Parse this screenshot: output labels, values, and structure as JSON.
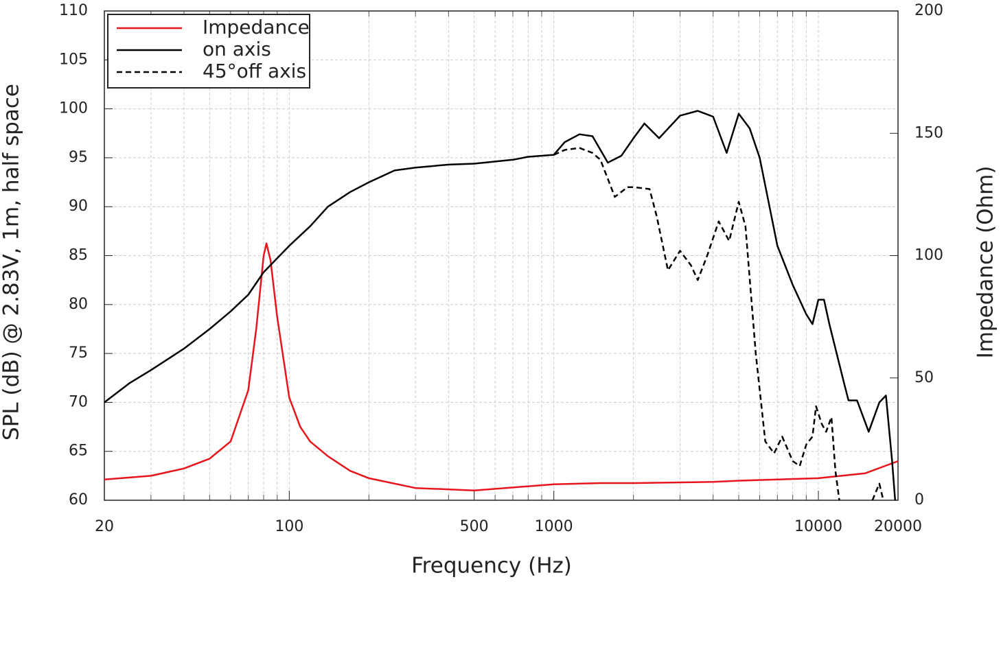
{
  "chart_data": {
    "type": "line",
    "xlabel": "Frequency (Hz)",
    "ylabel": "SPL (dB) @ 2.83V, 1m, half space",
    "y2label": "Impedance (Ohm)",
    "xscale": "log",
    "xlim": [
      20,
      20000
    ],
    "xticks": [
      20,
      100,
      500,
      1000,
      10000,
      20000
    ],
    "xgrid": [
      30,
      40,
      50,
      60,
      70,
      80,
      90,
      200,
      300,
      400,
      600,
      700,
      800,
      900,
      2000,
      3000,
      4000,
      5000,
      6000,
      7000,
      8000,
      9000
    ],
    "ylim": [
      60,
      110
    ],
    "yticks": [
      60,
      65,
      70,
      75,
      80,
      85,
      90,
      95,
      100,
      105,
      110
    ],
    "y2lim": [
      0,
      200
    ],
    "y2ticks": [
      0,
      50,
      100,
      150,
      200
    ],
    "grid": true,
    "legend": "upper-left",
    "series": [
      {
        "name": "Impedance",
        "color": "#e8141c",
        "style": "solid",
        "axis": "y2",
        "x": [
          20,
          30,
          40,
          50,
          60,
          70,
          75,
          80,
          82,
          85,
          90,
          100,
          110,
          120,
          140,
          170,
          200,
          300,
          500,
          1000,
          1500,
          2000,
          4000,
          5000,
          10000,
          15000,
          20000
        ],
        "values": [
          8.5,
          10,
          13,
          17,
          24,
          45,
          70,
          100,
          105,
          98,
          75,
          42,
          30,
          24,
          18,
          12,
          9,
          5,
          4,
          6.5,
          7,
          7,
          7.5,
          8,
          9,
          11,
          16
        ]
      },
      {
        "name": "on axis",
        "color": "#000000",
        "style": "solid",
        "x": [
          20,
          25,
          30,
          40,
          50,
          60,
          70,
          80,
          100,
          120,
          140,
          170,
          200,
          250,
          300,
          400,
          500,
          700,
          800,
          1000,
          1100,
          1250,
          1400,
          1600,
          1800,
          2000,
          2200,
          2500,
          3000,
          3500,
          4000,
          4500,
          5000,
          5500,
          6000,
          7000,
          8000,
          9000,
          9500,
          10000,
          10500,
          11000,
          12500,
          13000,
          14000,
          15500,
          17000,
          18000,
          19000,
          19500
        ],
        "values": [
          70,
          72,
          73.3,
          75.5,
          77.5,
          79.3,
          81,
          83.3,
          86,
          88,
          90,
          91.5,
          92.5,
          93.7,
          94,
          94.3,
          94.4,
          94.8,
          95.1,
          95.3,
          96.6,
          97.4,
          97.2,
          94.5,
          95.2,
          97,
          98.5,
          97,
          99.3,
          99.8,
          99.2,
          95.5,
          99.5,
          98,
          95,
          86,
          82,
          79,
          78,
          80.5,
          80.5,
          78,
          72,
          70.2,
          70.2,
          67,
          70,
          70.7,
          64,
          60
        ]
      },
      {
        "name": "45°off axis",
        "color": "#000000",
        "style": "dashed",
        "x": [
          1000,
          1100,
          1250,
          1400,
          1500,
          1700,
          1900,
          2000,
          2300,
          2450,
          2700,
          3000,
          3300,
          3500,
          3800,
          4200,
          4600,
          5000,
          5300,
          5800,
          6300,
          6800,
          7300,
          8000,
          8500,
          9000,
          9500,
          9800,
          10300,
          10700,
          11200,
          11600,
          12000,
          13000,
          16000,
          17000,
          17600
        ],
        "values": [
          95.3,
          95.8,
          96,
          95.5,
          94.8,
          91,
          92,
          92,
          91.8,
          89,
          83.5,
          85.5,
          84,
          82.5,
          85,
          88.5,
          86.5,
          90.5,
          88,
          75,
          66,
          64.8,
          66.5,
          64,
          63.5,
          65.7,
          66.5,
          69.6,
          67.8,
          67,
          68.5,
          63,
          60,
          null,
          60,
          61.7,
          60
        ]
      }
    ]
  }
}
